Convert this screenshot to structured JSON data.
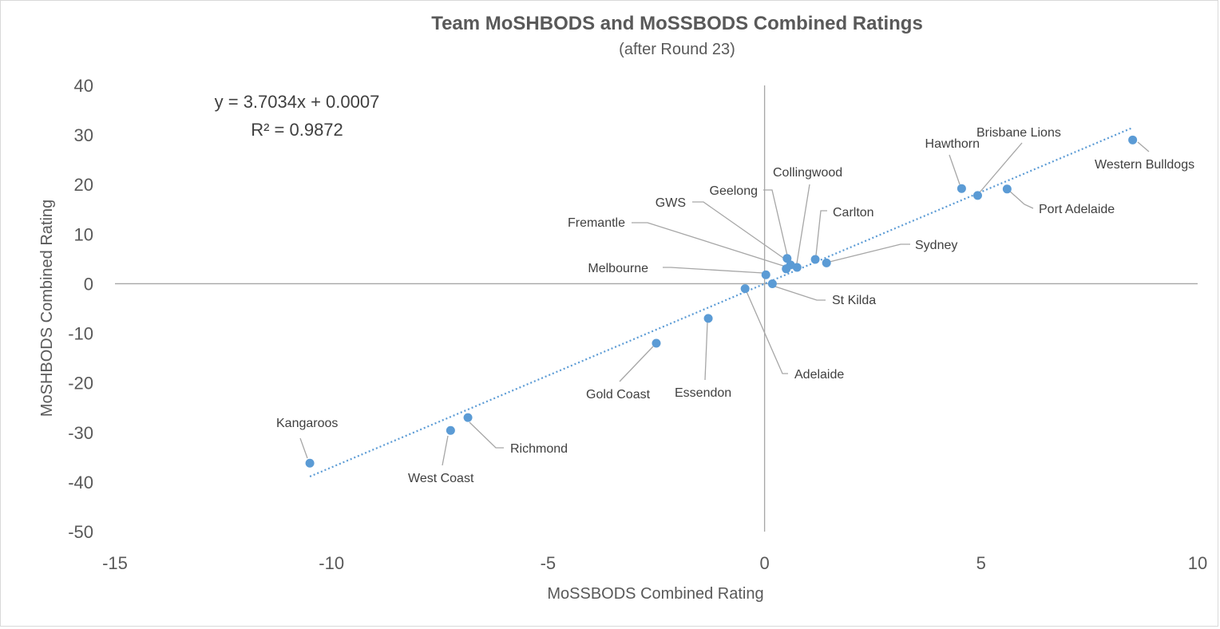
{
  "chart_data": {
    "type": "scatter",
    "title": "Team MoSHBODS and MoSSBODS Combined Ratings",
    "subtitle": "(after Round 23)",
    "xlabel": "MoSSBODS Combined Rating",
    "ylabel": "MoSHBODS Combined Rating",
    "xlim": [
      -15,
      10
    ],
    "ylim": [
      -50,
      40
    ],
    "x_ticks": [
      -15,
      -10,
      -5,
      0,
      5,
      10
    ],
    "y_ticks": [
      40,
      30,
      20,
      10,
      0,
      -10,
      -20,
      -30,
      -40,
      -50
    ],
    "x_tick_labels": [
      "-15",
      "-10",
      "-5",
      "0",
      "5",
      "10"
    ],
    "y_tick_labels": [
      "40",
      "30",
      "20",
      "10",
      "0",
      "-10",
      "-20",
      "-30",
      "-40",
      "-50"
    ],
    "grid": false,
    "marker_color": "#5b9bd5",
    "trendline_color": "#5b9bd5",
    "leader_color": "#a6a6a6",
    "trendline": {
      "slope": 3.7034,
      "intercept": 0.0007,
      "x_range": [
        -10.5,
        8.5
      ],
      "equation": "y = 3.7034x + 0.0007",
      "r_squared": "R² = 0.9872"
    },
    "points": [
      {
        "name": "Western Bulldogs",
        "x": 8.5,
        "y": 29.0
      },
      {
        "name": "Hawthorn",
        "x": 4.55,
        "y": 19.2
      },
      {
        "name": "Brisbane Lions",
        "x": 4.92,
        "y": 17.8
      },
      {
        "name": "Port Adelaide",
        "x": 5.6,
        "y": 19.1
      },
      {
        "name": "Collingwood",
        "x": 0.75,
        "y": 3.3
      },
      {
        "name": "Geelong",
        "x": 0.52,
        "y": 5.1
      },
      {
        "name": "GWS",
        "x": 0.6,
        "y": 3.8
      },
      {
        "name": "Fremantle",
        "x": 0.5,
        "y": 3.0
      },
      {
        "name": "Carlton",
        "x": 1.17,
        "y": 4.9
      },
      {
        "name": "Sydney",
        "x": 1.43,
        "y": 4.2
      },
      {
        "name": "Melbourne",
        "x": 0.03,
        "y": 1.8
      },
      {
        "name": "St Kilda",
        "x": 0.18,
        "y": 0.0
      },
      {
        "name": "Adelaide",
        "x": -0.45,
        "y": -1.0
      },
      {
        "name": "Essendon",
        "x": -1.3,
        "y": -7.0
      },
      {
        "name": "Gold Coast",
        "x": -2.5,
        "y": -12.0
      },
      {
        "name": "Richmond",
        "x": -6.85,
        "y": -27.0
      },
      {
        "name": "West Coast",
        "x": -7.25,
        "y": -29.6
      },
      {
        "name": "Kangaroos",
        "x": -10.5,
        "y": -36.2
      }
    ]
  }
}
